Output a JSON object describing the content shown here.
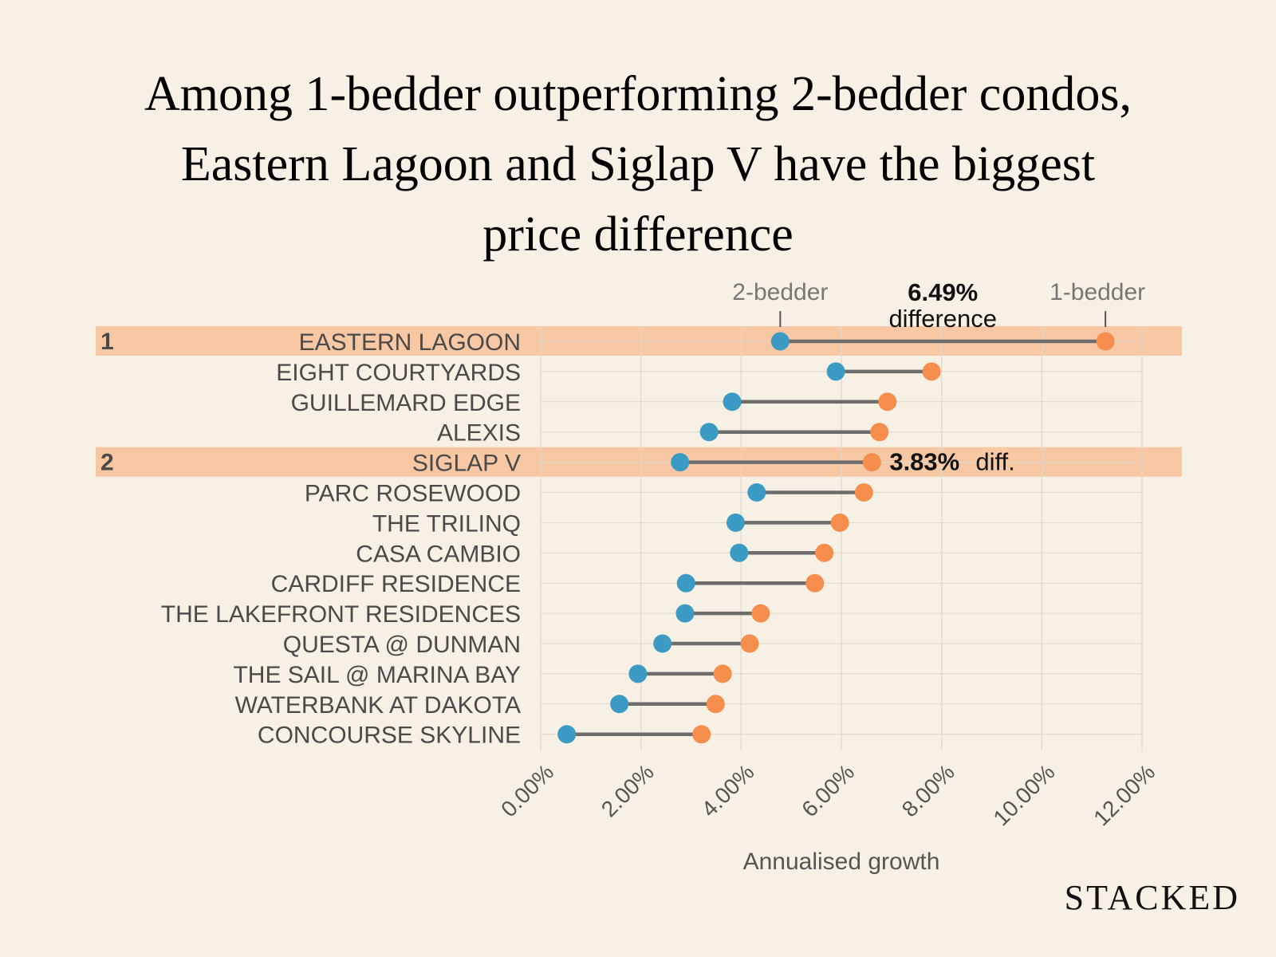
{
  "chart_data": {
    "type": "dumbbell",
    "title_lines": [
      "Among 1-bedder outperforming 2-bedder condos,",
      "Eastern Lagoon and Siglap V have the biggest",
      "price difference"
    ],
    "xlabel": "Annualised growth",
    "xlim": [
      0,
      12
    ],
    "x_ticks": [
      0,
      2,
      4,
      6,
      8,
      10,
      12
    ],
    "x_tick_labels": [
      "0.00%",
      "2.00%",
      "4.00%",
      "6.00%",
      "8.00%",
      "10.00%",
      "12.00%"
    ],
    "series": [
      {
        "name": "2-bedder",
        "color": "#3b9bc4"
      },
      {
        "name": "1-bedder",
        "color": "#f58d4d"
      }
    ],
    "rows": [
      {
        "name": "EASTERN LAGOON",
        "two_bedder": 4.78,
        "one_bedder": 11.27,
        "rank": "1",
        "highlight": true
      },
      {
        "name": "EIGHT COURTYARDS",
        "two_bedder": 5.89,
        "one_bedder": 7.8,
        "rank": "",
        "highlight": false
      },
      {
        "name": "GUILLEMARD EDGE",
        "two_bedder": 3.82,
        "one_bedder": 6.92,
        "rank": "",
        "highlight": false
      },
      {
        "name": "ALEXIS",
        "two_bedder": 3.36,
        "one_bedder": 6.76,
        "rank": "",
        "highlight": false
      },
      {
        "name": "SIGLAP V",
        "two_bedder": 2.78,
        "one_bedder": 6.61,
        "rank": "2",
        "highlight": true
      },
      {
        "name": "PARC ROSEWOOD",
        "two_bedder": 4.31,
        "one_bedder": 6.45,
        "rank": "",
        "highlight": false
      },
      {
        "name": "THE TRILINQ",
        "two_bedder": 3.89,
        "one_bedder": 5.97,
        "rank": "",
        "highlight": false
      },
      {
        "name": "CASA CAMBIO",
        "two_bedder": 3.96,
        "one_bedder": 5.66,
        "rank": "",
        "highlight": false
      },
      {
        "name": "CARDIFF RESIDENCE",
        "two_bedder": 2.9,
        "one_bedder": 5.47,
        "rank": "",
        "highlight": false
      },
      {
        "name": "THE LAKEFRONT RESIDENCES",
        "two_bedder": 2.88,
        "one_bedder": 4.39,
        "rank": "",
        "highlight": false
      },
      {
        "name": "QUESTA @ DUNMAN",
        "two_bedder": 2.43,
        "one_bedder": 4.17,
        "rank": "",
        "highlight": false
      },
      {
        "name": "THE SAIL @ MARINA BAY",
        "two_bedder": 1.94,
        "one_bedder": 3.63,
        "rank": "",
        "highlight": false
      },
      {
        "name": "WATERBANK AT DAKOTA",
        "two_bedder": 1.57,
        "one_bedder": 3.49,
        "rank": "",
        "highlight": false
      },
      {
        "name": "CONCOURSE SKYLINE",
        "two_bedder": 0.52,
        "one_bedder": 3.21,
        "rank": "",
        "highlight": false
      }
    ],
    "annotations": {
      "top_value": "6.49%",
      "top_text": "difference",
      "siglap_value": "3.83%",
      "siglap_text": "diff."
    }
  },
  "colors": {
    "background": "#f7f0e4",
    "highlight": "#f7c8a3",
    "connector": "#6d6d6d",
    "grid": "#dcd8d0"
  },
  "brand": "STACKED"
}
